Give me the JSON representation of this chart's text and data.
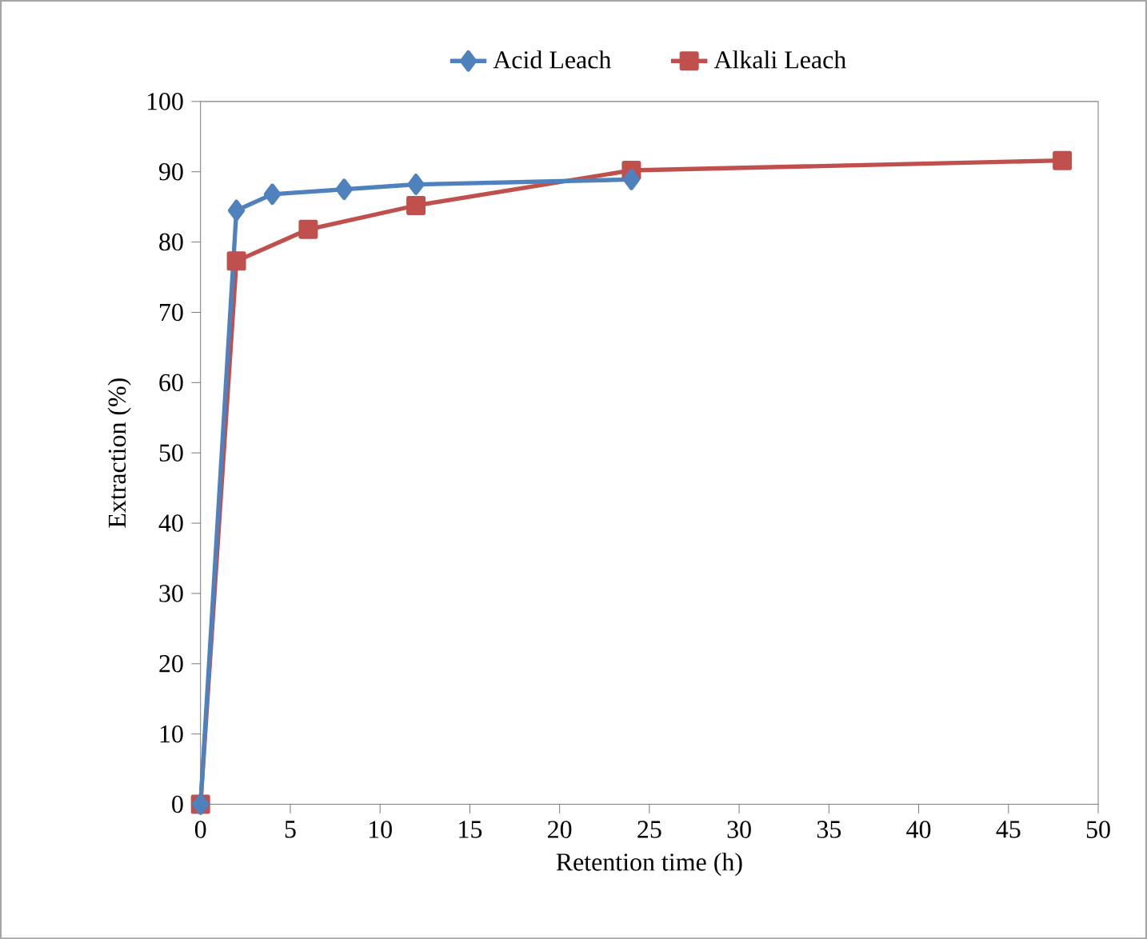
{
  "chart_data": {
    "type": "line",
    "xlabel": "Retention time (h)",
    "ylabel": "Extraction (%)",
    "xlim": [
      0,
      50
    ],
    "xticks": [
      0,
      5,
      10,
      15,
      20,
      25,
      30,
      35,
      40,
      45,
      50
    ],
    "ylim": [
      0,
      100
    ],
    "yticks": [
      0,
      10,
      20,
      30,
      40,
      50,
      60,
      70,
      80,
      90,
      100
    ],
    "grid": false,
    "legend": "top",
    "line_style": "solid",
    "series": [
      {
        "name": "Acid Leach",
        "color": "#4f81bd",
        "marker": "diamond",
        "x": [
          0,
          2,
          4,
          8,
          12,
          24
        ],
        "values": [
          0,
          84.5,
          86.8,
          87.5,
          88.2,
          88.9
        ]
      },
      {
        "name": "Alkali Leach",
        "color": "#c0504d",
        "marker": "square",
        "x": [
          0,
          2,
          6,
          12,
          24,
          48
        ],
        "values": [
          0,
          77.3,
          81.8,
          85.2,
          90.2,
          91.6
        ]
      }
    ]
  }
}
